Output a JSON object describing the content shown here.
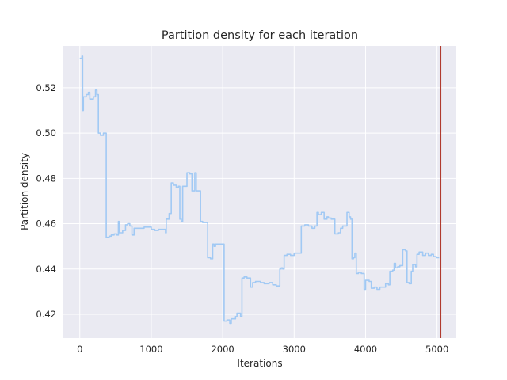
{
  "chart_data": {
    "type": "line",
    "title": "Partition density for each iteration",
    "xlabel": "Iterations",
    "ylabel": "Partition density",
    "xlim": [
      -230,
      5270
    ],
    "ylim": [
      0.4095,
      0.5385
    ],
    "x_ticks": [
      0,
      1000,
      2000,
      3000,
      4000,
      5000
    ],
    "x_tick_labels": [
      "0",
      "1000",
      "2000",
      "3000",
      "4000",
      "5000"
    ],
    "y_ticks": [
      0.42,
      0.44,
      0.46,
      0.48,
      0.5,
      0.52
    ],
    "y_tick_labels": [
      "0.42",
      "0.44",
      "0.46",
      "0.48",
      "0.50",
      "0.52"
    ],
    "grid": true,
    "background": "#eaeaf2",
    "series": [
      {
        "color": "#a1c9f4",
        "step": true,
        "points": [
          [
            0,
            0.533
          ],
          [
            30,
            0.534
          ],
          [
            40,
            0.51
          ],
          [
            50,
            0.516
          ],
          [
            90,
            0.517
          ],
          [
            120,
            0.518
          ],
          [
            140,
            0.515
          ],
          [
            190,
            0.516
          ],
          [
            220,
            0.519
          ],
          [
            240,
            0.517
          ],
          [
            260,
            0.5
          ],
          [
            290,
            0.499
          ],
          [
            330,
            0.5
          ],
          [
            370,
            0.454
          ],
          [
            410,
            0.4545
          ],
          [
            440,
            0.455
          ],
          [
            480,
            0.4555
          ],
          [
            520,
            0.455
          ],
          [
            540,
            0.461
          ],
          [
            550,
            0.456
          ],
          [
            600,
            0.457
          ],
          [
            640,
            0.4595
          ],
          [
            670,
            0.46
          ],
          [
            700,
            0.459
          ],
          [
            730,
            0.455
          ],
          [
            760,
            0.458
          ],
          [
            900,
            0.4585
          ],
          [
            1000,
            0.4575
          ],
          [
            1050,
            0.457
          ],
          [
            1100,
            0.4575
          ],
          [
            1200,
            0.456
          ],
          [
            1210,
            0.462
          ],
          [
            1250,
            0.4645
          ],
          [
            1280,
            0.478
          ],
          [
            1310,
            0.477
          ],
          [
            1350,
            0.476
          ],
          [
            1380,
            0.4765
          ],
          [
            1400,
            0.462
          ],
          [
            1420,
            0.461
          ],
          [
            1440,
            0.4765
          ],
          [
            1470,
            0.4765
          ],
          [
            1500,
            0.4825
          ],
          [
            1540,
            0.482
          ],
          [
            1570,
            0.4745
          ],
          [
            1610,
            0.4825
          ],
          [
            1630,
            0.4745
          ],
          [
            1690,
            0.461
          ],
          [
            1720,
            0.4605
          ],
          [
            1790,
            0.445
          ],
          [
            1830,
            0.4445
          ],
          [
            1860,
            0.451
          ],
          [
            1880,
            0.45
          ],
          [
            1900,
            0.451
          ],
          [
            2020,
            0.417
          ],
          [
            2060,
            0.4175
          ],
          [
            2100,
            0.416
          ],
          [
            2120,
            0.418
          ],
          [
            2180,
            0.419
          ],
          [
            2200,
            0.4205
          ],
          [
            2250,
            0.419
          ],
          [
            2270,
            0.436
          ],
          [
            2300,
            0.4365
          ],
          [
            2340,
            0.436
          ],
          [
            2390,
            0.432
          ],
          [
            2420,
            0.434
          ],
          [
            2460,
            0.4345
          ],
          [
            2530,
            0.434
          ],
          [
            2580,
            0.4335
          ],
          [
            2650,
            0.434
          ],
          [
            2700,
            0.433
          ],
          [
            2750,
            0.4325
          ],
          [
            2800,
            0.44
          ],
          [
            2820,
            0.4405
          ],
          [
            2840,
            0.44
          ],
          [
            2860,
            0.446
          ],
          [
            2900,
            0.4465
          ],
          [
            2950,
            0.446
          ],
          [
            3000,
            0.447
          ],
          [
            3050,
            0.447
          ],
          [
            3100,
            0.459
          ],
          [
            3150,
            0.4595
          ],
          [
            3200,
            0.459
          ],
          [
            3250,
            0.458
          ],
          [
            3290,
            0.459
          ],
          [
            3320,
            0.465
          ],
          [
            3340,
            0.464
          ],
          [
            3380,
            0.465
          ],
          [
            3420,
            0.462
          ],
          [
            3460,
            0.463
          ],
          [
            3480,
            0.4625
          ],
          [
            3520,
            0.462
          ],
          [
            3570,
            0.4555
          ],
          [
            3620,
            0.456
          ],
          [
            3650,
            0.458
          ],
          [
            3680,
            0.459
          ],
          [
            3710,
            0.459
          ],
          [
            3740,
            0.465
          ],
          [
            3770,
            0.463
          ],
          [
            3790,
            0.462
          ],
          [
            3810,
            0.4445
          ],
          [
            3830,
            0.445
          ],
          [
            3850,
            0.447
          ],
          [
            3870,
            0.438
          ],
          [
            3900,
            0.4385
          ],
          [
            3940,
            0.438
          ],
          [
            3980,
            0.431
          ],
          [
            4000,
            0.435
          ],
          [
            4050,
            0.4345
          ],
          [
            4080,
            0.4315
          ],
          [
            4120,
            0.432
          ],
          [
            4160,
            0.431
          ],
          [
            4200,
            0.432
          ],
          [
            4250,
            0.432
          ],
          [
            4280,
            0.4335
          ],
          [
            4320,
            0.433
          ],
          [
            4340,
            0.439
          ],
          [
            4380,
            0.4395
          ],
          [
            4400,
            0.4425
          ],
          [
            4420,
            0.4405
          ],
          [
            4450,
            0.441
          ],
          [
            4480,
            0.4415
          ],
          [
            4520,
            0.4485
          ],
          [
            4560,
            0.448
          ],
          [
            4580,
            0.434
          ],
          [
            4610,
            0.4335
          ],
          [
            4640,
            0.439
          ],
          [
            4660,
            0.442
          ],
          [
            4700,
            0.441
          ],
          [
            4720,
            0.4465
          ],
          [
            4750,
            0.4475
          ],
          [
            4800,
            0.446
          ],
          [
            4840,
            0.447
          ],
          [
            4880,
            0.446
          ],
          [
            4920,
            0.4465
          ],
          [
            4950,
            0.4455
          ],
          [
            4990,
            0.445
          ],
          [
            5030,
            0.445
          ]
        ]
      }
    ],
    "vline": {
      "x": 5050,
      "color": "#b03a2e"
    }
  }
}
